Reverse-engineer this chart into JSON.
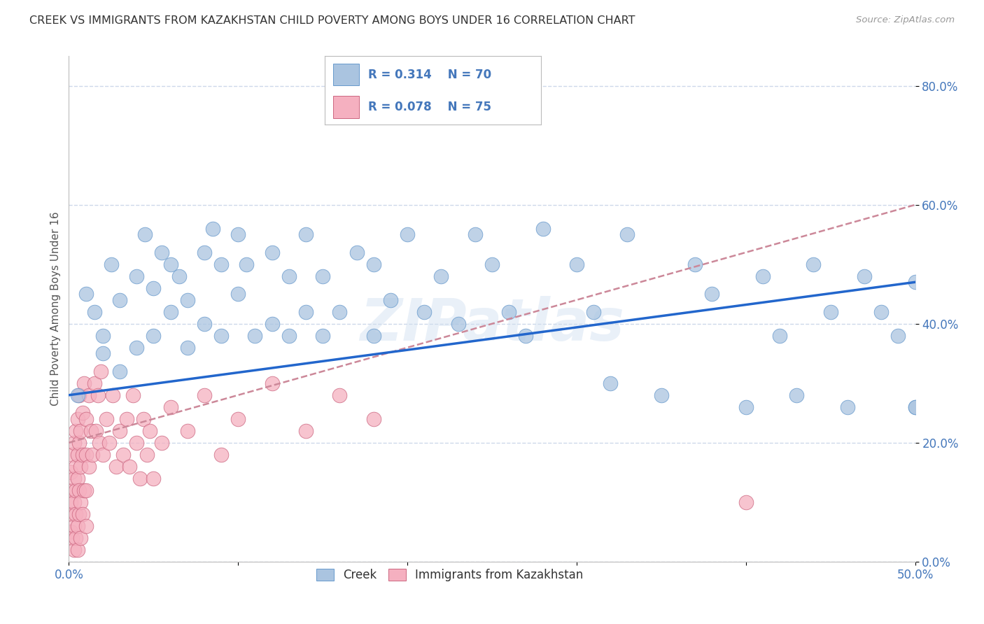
{
  "title": "CREEK VS IMMIGRANTS FROM KAZAKHSTAN CHILD POVERTY AMONG BOYS UNDER 16 CORRELATION CHART",
  "source": "Source: ZipAtlas.com",
  "ylabel": "Child Poverty Among Boys Under 16",
  "xlim": [
    0.0,
    0.5
  ],
  "ylim": [
    0.0,
    0.85
  ],
  "x_ticks": [
    0.0,
    0.1,
    0.2,
    0.3,
    0.4,
    0.5
  ],
  "x_tick_labels": [
    "0.0%",
    "",
    "",
    "",
    "",
    "50.0%"
  ],
  "y_ticks": [
    0.0,
    0.2,
    0.4,
    0.6,
    0.8
  ],
  "y_tick_labels": [
    "0.0%",
    "20.0%",
    "40.0%",
    "60.0%",
    "80.0%"
  ],
  "creek_color": "#aac4e0",
  "creek_edge_color": "#6699cc",
  "imm_color": "#f5b0c0",
  "imm_edge_color": "#cc6680",
  "creek_R": 0.314,
  "creek_N": 70,
  "imm_R": 0.078,
  "imm_N": 75,
  "legend_label_creek": "Creek",
  "legend_label_imm": "Immigrants from Kazakhstan",
  "watermark": "ZIPatlas",
  "creek_line_color": "#2266cc",
  "imm_line_color": "#cc8899",
  "grid_color": "#c8d4e8",
  "title_color": "#333333",
  "axis_label_color": "#555555",
  "tick_label_color": "#4477bb",
  "R_N_color": "#4477bb",
  "creek_line_y0": 0.28,
  "creek_line_y1": 0.47,
  "imm_line_x0": 0.0,
  "imm_line_y0": 0.2,
  "imm_line_x1": 0.5,
  "imm_line_y1": 0.6,
  "creek_x": [
    0.005,
    0.01,
    0.015,
    0.02,
    0.02,
    0.025,
    0.03,
    0.03,
    0.04,
    0.04,
    0.045,
    0.05,
    0.05,
    0.055,
    0.06,
    0.06,
    0.065,
    0.07,
    0.07,
    0.08,
    0.08,
    0.085,
    0.09,
    0.09,
    0.1,
    0.1,
    0.105,
    0.11,
    0.12,
    0.12,
    0.13,
    0.13,
    0.14,
    0.14,
    0.15,
    0.15,
    0.16,
    0.17,
    0.18,
    0.18,
    0.19,
    0.2,
    0.21,
    0.22,
    0.23,
    0.24,
    0.25,
    0.26,
    0.27,
    0.28,
    0.3,
    0.31,
    0.32,
    0.33,
    0.35,
    0.37,
    0.38,
    0.4,
    0.41,
    0.42,
    0.43,
    0.44,
    0.45,
    0.46,
    0.47,
    0.48,
    0.49,
    0.5,
    0.5,
    0.5
  ],
  "creek_y": [
    0.28,
    0.45,
    0.42,
    0.38,
    0.35,
    0.5,
    0.44,
    0.32,
    0.48,
    0.36,
    0.55,
    0.46,
    0.38,
    0.52,
    0.5,
    0.42,
    0.48,
    0.44,
    0.36,
    0.52,
    0.4,
    0.56,
    0.5,
    0.38,
    0.55,
    0.45,
    0.5,
    0.38,
    0.52,
    0.4,
    0.48,
    0.38,
    0.55,
    0.42,
    0.48,
    0.38,
    0.42,
    0.52,
    0.5,
    0.38,
    0.44,
    0.55,
    0.42,
    0.48,
    0.4,
    0.55,
    0.5,
    0.42,
    0.38,
    0.56,
    0.5,
    0.42,
    0.3,
    0.55,
    0.28,
    0.5,
    0.45,
    0.26,
    0.48,
    0.38,
    0.28,
    0.5,
    0.42,
    0.26,
    0.48,
    0.42,
    0.38,
    0.47,
    0.26,
    0.26
  ],
  "imm_x": [
    0.001,
    0.001,
    0.001,
    0.002,
    0.002,
    0.002,
    0.002,
    0.003,
    0.003,
    0.003,
    0.003,
    0.003,
    0.004,
    0.004,
    0.004,
    0.004,
    0.004,
    0.005,
    0.005,
    0.005,
    0.005,
    0.005,
    0.006,
    0.006,
    0.006,
    0.006,
    0.007,
    0.007,
    0.007,
    0.007,
    0.008,
    0.008,
    0.008,
    0.009,
    0.009,
    0.01,
    0.01,
    0.01,
    0.01,
    0.012,
    0.012,
    0.013,
    0.014,
    0.015,
    0.016,
    0.017,
    0.018,
    0.019,
    0.02,
    0.022,
    0.024,
    0.026,
    0.028,
    0.03,
    0.032,
    0.034,
    0.036,
    0.038,
    0.04,
    0.042,
    0.044,
    0.046,
    0.048,
    0.05,
    0.055,
    0.06,
    0.07,
    0.08,
    0.09,
    0.1,
    0.12,
    0.14,
    0.16,
    0.18,
    0.4
  ],
  "imm_y": [
    0.1,
    0.15,
    0.05,
    0.12,
    0.08,
    0.18,
    0.04,
    0.14,
    0.1,
    0.06,
    0.2,
    0.02,
    0.16,
    0.12,
    0.08,
    0.22,
    0.04,
    0.18,
    0.14,
    0.06,
    0.24,
    0.02,
    0.2,
    0.12,
    0.08,
    0.28,
    0.22,
    0.16,
    0.1,
    0.04,
    0.25,
    0.18,
    0.08,
    0.3,
    0.12,
    0.24,
    0.18,
    0.12,
    0.06,
    0.28,
    0.16,
    0.22,
    0.18,
    0.3,
    0.22,
    0.28,
    0.2,
    0.32,
    0.18,
    0.24,
    0.2,
    0.28,
    0.16,
    0.22,
    0.18,
    0.24,
    0.16,
    0.28,
    0.2,
    0.14,
    0.24,
    0.18,
    0.22,
    0.14,
    0.2,
    0.26,
    0.22,
    0.28,
    0.18,
    0.24,
    0.3,
    0.22,
    0.28,
    0.24,
    0.1
  ]
}
